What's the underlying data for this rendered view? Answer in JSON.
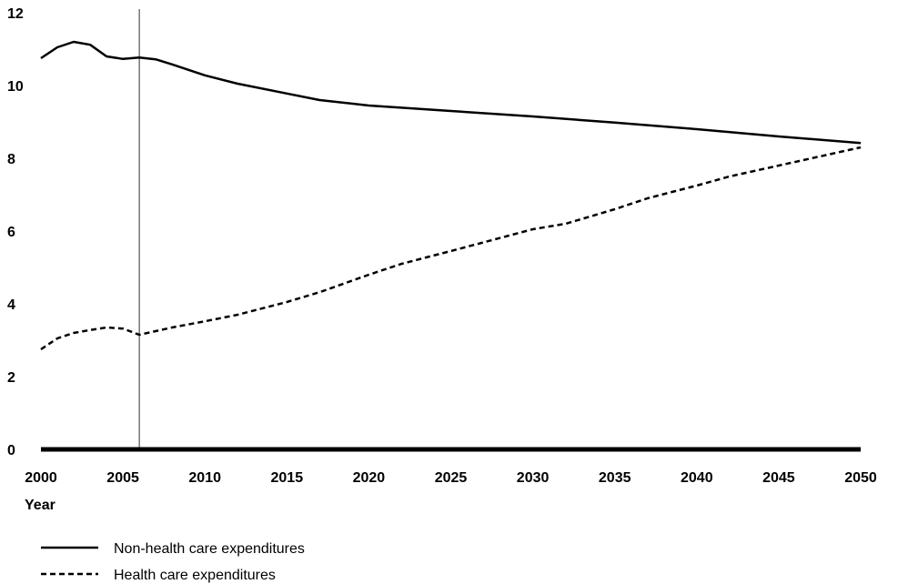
{
  "chart_data": {
    "type": "line",
    "title": "",
    "xlabel": "Year",
    "ylabel": "",
    "xlim": [
      2000,
      2050
    ],
    "ylim": [
      0,
      12
    ],
    "x_ticks": [
      "2000",
      "2005",
      "2010",
      "2015",
      "2020",
      "2025",
      "2030",
      "2035",
      "2040",
      "2045",
      "2050"
    ],
    "y_ticks": [
      "0",
      "2",
      "4",
      "6",
      "8",
      "10",
      "12"
    ],
    "grid": false,
    "legend_position": "bottom-left",
    "reference_line_x": 2006,
    "series": [
      {
        "name": "Non-health care expenditures",
        "style": "solid",
        "color": "#000000",
        "x": [
          2000,
          2001,
          2002,
          2003,
          2004,
          2005,
          2006,
          2007,
          2008,
          2010,
          2012,
          2015,
          2017,
          2020,
          2025,
          2030,
          2035,
          2040,
          2045,
          2050
        ],
        "y": [
          10.75,
          11.05,
          11.2,
          11.12,
          10.8,
          10.73,
          10.77,
          10.72,
          10.58,
          10.28,
          10.05,
          9.78,
          9.6,
          9.45,
          9.3,
          9.15,
          8.98,
          8.8,
          8.6,
          8.42
        ]
      },
      {
        "name": "Health care expenditures",
        "style": "dashed",
        "color": "#000000",
        "x": [
          2000,
          2001,
          2002,
          2003,
          2004,
          2005,
          2006,
          2008,
          2010,
          2012,
          2015,
          2017,
          2020,
          2022,
          2025,
          2030,
          2032,
          2035,
          2037,
          2040,
          2042,
          2045,
          2050
        ],
        "y": [
          2.75,
          3.05,
          3.2,
          3.28,
          3.35,
          3.32,
          3.15,
          3.35,
          3.52,
          3.7,
          4.05,
          4.32,
          4.8,
          5.1,
          5.45,
          6.05,
          6.2,
          6.6,
          6.9,
          7.25,
          7.5,
          7.8,
          8.3
        ]
      }
    ]
  }
}
